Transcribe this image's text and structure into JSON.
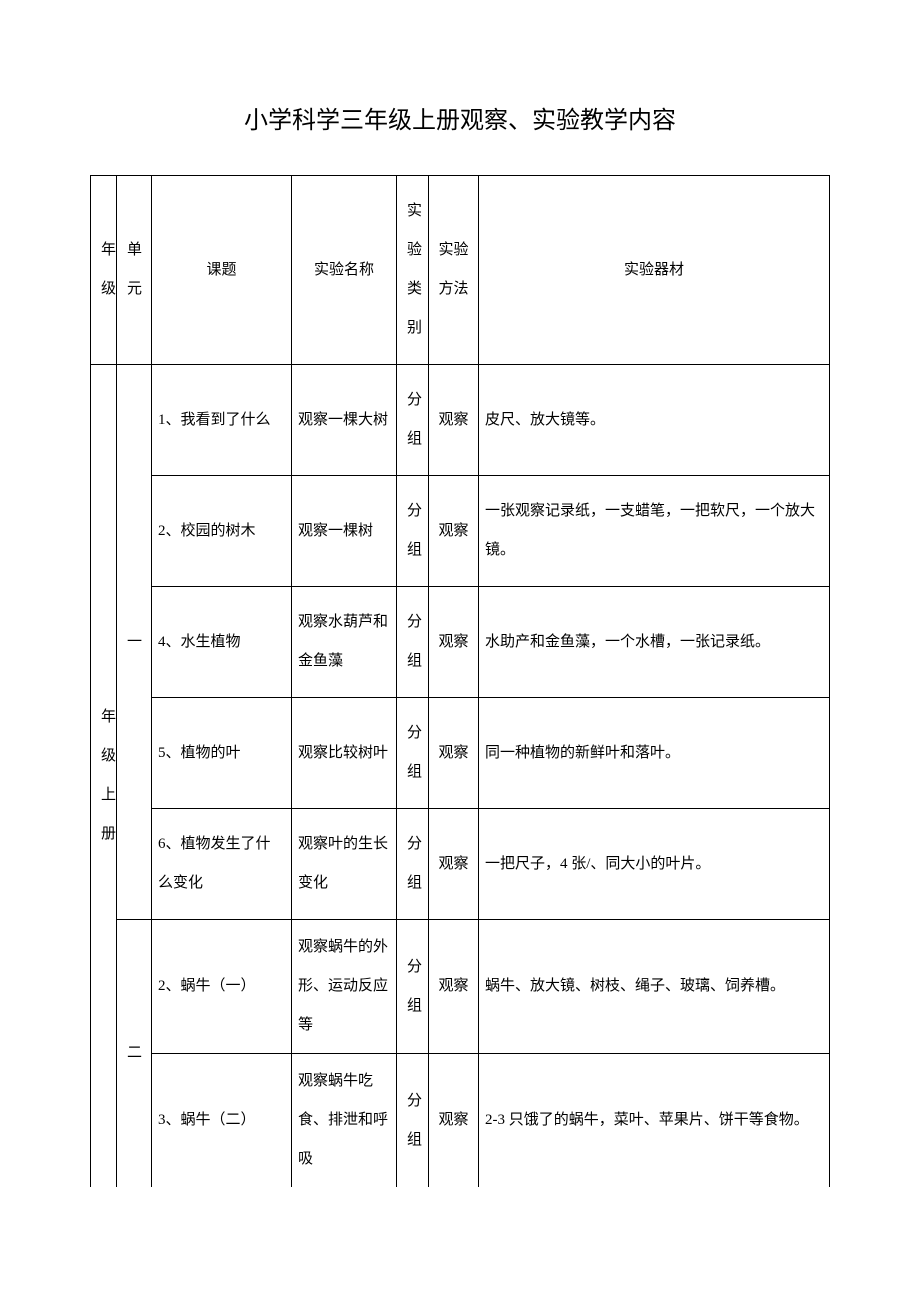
{
  "title": "小学科学三年级上册观察、实验教学内容",
  "headers": {
    "grade": "年级",
    "unit": "单元",
    "topic": "课题",
    "expname": "实验名称",
    "type": "实验类别",
    "method": "实验方法",
    "equipment": "实验器材"
  },
  "gradeLabel": "年级上册",
  "unit1Label": "一",
  "unit2Label": "二",
  "rows": [
    {
      "topic": "1、我看到了什么",
      "expname": "观察一棵大树",
      "type": "分组",
      "method": "观察",
      "equipment": "皮尺、放大镜等。"
    },
    {
      "topic": "2、校园的树木",
      "expname": "观察一棵树",
      "type": "分组",
      "method": "观察",
      "equipment": "一张观察记录纸，一支蜡笔，一把软尺，一个放大镜。"
    },
    {
      "topic": "4、水生植物",
      "expname": "观察水葫芦和金鱼藻",
      "type": "分组",
      "method": "观察",
      "equipment": "水助产和金鱼藻，一个水槽，一张记录纸。"
    },
    {
      "topic": "5、植物的叶",
      "expname": "观察比较树叶",
      "type": "分组",
      "method": "观察",
      "equipment": "同一种植物的新鲜叶和落叶。"
    },
    {
      "topic": "6、植物发生了什么变化",
      "expname": "观察叶的生长变化",
      "type": "分组",
      "method": "观察",
      "equipment": "一把尺子，4 张/、同大小的叶片。"
    },
    {
      "topic": "2、蜗牛（一）",
      "expname": "观察蜗牛的外形、运动反应等",
      "type": "分组",
      "method": "观察",
      "equipment": "蜗牛、放大镜、树枝、绳子、玻璃、饲养槽。"
    },
    {
      "topic": "3、蜗牛（二）",
      "expname": "观察蜗牛吃食、排泄和呼吸",
      "type": "分组",
      "method": "观察",
      "equipment": "2-3 只饿了的蜗牛，菜叶、苹果片、饼干等食物。"
    }
  ],
  "style": {
    "background_color": "#ffffff",
    "border_color": "#000000",
    "title_fontsize": 24,
    "cell_fontsize": 15,
    "line_height": 2.6,
    "font_family": "SimSun"
  }
}
